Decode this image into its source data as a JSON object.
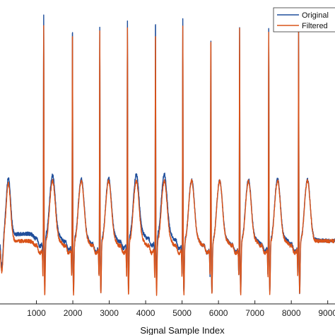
{
  "chart_data": {
    "type": "line",
    "title": "",
    "xlabel": "Signal Sample Index",
    "ylabel": "",
    "xlim": [
      0,
      9200
    ],
    "ylim": [
      -0.6,
      2.3
    ],
    "grid": false,
    "legend_position": "top-right",
    "x_ticks": [
      1000,
      2000,
      3000,
      4000,
      5000,
      6000,
      7000,
      8000,
      9000
    ],
    "x_tick_labels": [
      "1000",
      "2000",
      "3000",
      "4000",
      "5000",
      "6000",
      "7000",
      "8000",
      "9000"
    ],
    "beats": [
      {
        "r": 1200,
        "original_r": 2.21,
        "filtered_r": 2.17
      },
      {
        "r": 1990,
        "original_r": 2.18,
        "filtered_r": 2.16
      },
      {
        "r": 2740,
        "original_r": 2.12,
        "filtered_r": 2.1
      },
      {
        "r": 3500,
        "original_r": 2.17,
        "filtered_r": 2.14
      },
      {
        "r": 4270,
        "original_r": 2.19,
        "filtered_r": 2.15
      },
      {
        "r": 5020,
        "original_r": 2.2,
        "filtered_r": 2.16
      },
      {
        "r": 5790,
        "original_r": 2.09,
        "filtered_r": 2.09
      },
      {
        "r": 6580,
        "original_r": 2.15,
        "filtered_r": 2.15
      },
      {
        "r": 7380,
        "original_r": 2.11,
        "filtered_r": 2.11
      },
      {
        "r": 8200,
        "original_r": 2.1,
        "filtered_r": 2.1
      }
    ],
    "series": [
      {
        "name": "Original",
        "color": "#1f4e9b"
      },
      {
        "name": "Filtered",
        "color": "#d95319"
      }
    ]
  },
  "legend": {
    "original_label": "Original",
    "filtered_label": "Filtered"
  }
}
